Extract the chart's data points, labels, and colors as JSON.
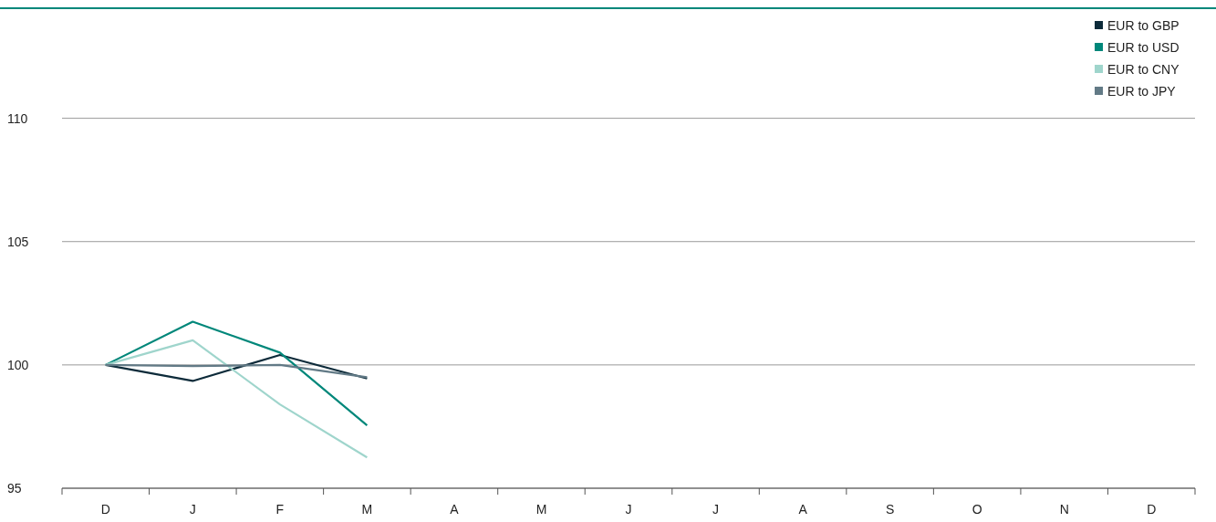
{
  "chart_data": {
    "type": "line",
    "categories": [
      "D",
      "J",
      "F",
      "M",
      "A",
      "M",
      "J",
      "J",
      "A",
      "S",
      "O",
      "N",
      "D"
    ],
    "series": [
      {
        "name": "EUR to GBP",
        "color": "#0d2b3a",
        "values": [
          100,
          99.35,
          100.4,
          99.45,
          null,
          null,
          null,
          null,
          null,
          null,
          null,
          null,
          null
        ]
      },
      {
        "name": "EUR to USD",
        "color": "#00877a",
        "values": [
          100,
          101.75,
          100.5,
          97.55,
          null,
          null,
          null,
          null,
          null,
          null,
          null,
          null,
          null
        ]
      },
      {
        "name": "EUR to CNY",
        "color": "#9fd5cc",
        "values": [
          100,
          101,
          98.4,
          96.25,
          null,
          null,
          null,
          null,
          null,
          null,
          null,
          null,
          null
        ]
      },
      {
        "name": "EUR to JPY",
        "color": "#627a86",
        "values": [
          100,
          99.95,
          100,
          99.5,
          null,
          null,
          null,
          null,
          null,
          null,
          null,
          null,
          null
        ]
      }
    ],
    "ylim": [
      95,
      114.5
    ],
    "yticks": [
      95,
      100,
      105,
      110
    ],
    "grid": "y",
    "legend": "top right",
    "marker": "none",
    "line_style": "solid"
  }
}
